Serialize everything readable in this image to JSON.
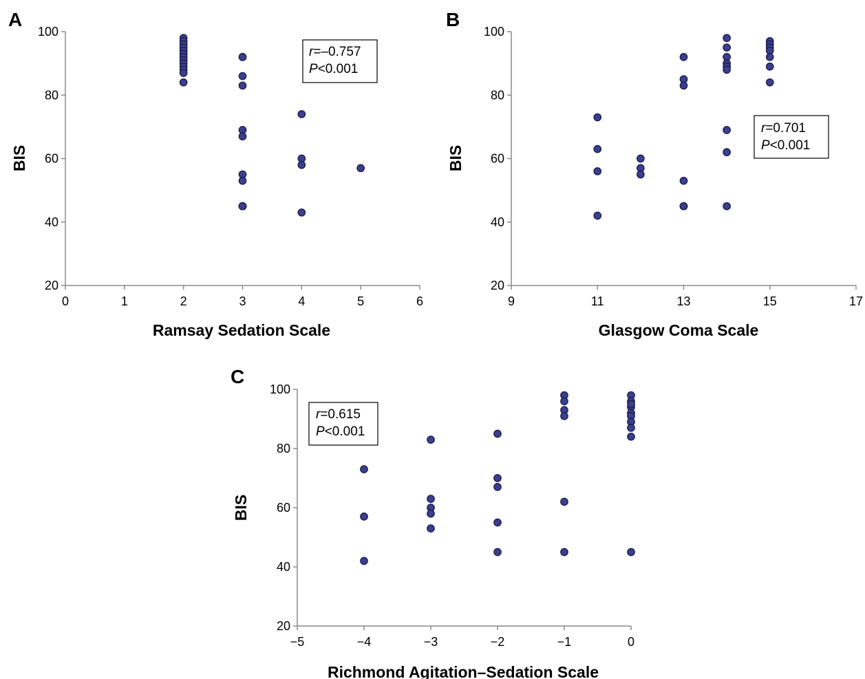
{
  "chart_data": [
    {
      "type": "scatter",
      "panel_label": "A",
      "xlabel": "Ramsay Sedation Scale",
      "ylabel": "BIS",
      "xlim": [
        0,
        6
      ],
      "ylim": [
        20,
        100
      ],
      "xticks": [
        "0",
        "1",
        "2",
        "3",
        "4",
        "5",
        "6"
      ],
      "yticks": [
        "20",
        "40",
        "60",
        "80",
        "100"
      ],
      "grid": false,
      "stats": {
        "r_symbol": "r",
        "r_value": "=–0.757",
        "p_symbol": "P",
        "p_value": "<0.001",
        "placement": "top-right"
      },
      "x": [
        2,
        2,
        2,
        2,
        2,
        2,
        2,
        2,
        2,
        2,
        2,
        2,
        2,
        2,
        3,
        3,
        3,
        3,
        3,
        3,
        3,
        3,
        3,
        3,
        3,
        3,
        3,
        4,
        4,
        4,
        4,
        5
      ],
      "y": [
        98,
        97,
        96,
        95,
        95,
        94,
        93,
        92,
        91,
        90,
        89,
        88,
        87,
        84,
        92,
        92,
        86,
        83,
        69,
        67,
        55,
        53,
        45,
        45,
        45,
        45,
        45,
        74,
        60,
        58,
        43,
        57
      ]
    },
    {
      "type": "scatter",
      "panel_label": "B",
      "xlabel": "Glasgow Coma Scale",
      "ylabel": "BIS",
      "xlim": [
        9,
        17
      ],
      "ylim": [
        20,
        100
      ],
      "xticks": [
        "9",
        "11",
        "13",
        "15",
        "17"
      ],
      "yticks": [
        "20",
        "40",
        "60",
        "80",
        "100"
      ],
      "grid": false,
      "stats": {
        "r_symbol": "r",
        "r_value": "=0.701",
        "p_symbol": "P",
        "p_value": "<0.001",
        "placement": "right"
      },
      "x": [
        11,
        11,
        11,
        11,
        12,
        12,
        12,
        13,
        13,
        13,
        13,
        13,
        13,
        14,
        14,
        14,
        14,
        14,
        14,
        14,
        14,
        14,
        15,
        15,
        15,
        15,
        15,
        15,
        15
      ],
      "y": [
        73,
        63,
        56,
        42,
        60,
        57,
        55,
        92,
        85,
        83,
        53,
        45,
        45,
        98,
        95,
        92,
        90,
        89,
        88,
        69,
        62,
        45,
        97,
        96,
        95,
        94,
        92,
        89,
        84
      ]
    },
    {
      "type": "scatter",
      "panel_label": "C",
      "xlabel": "Richmond Agitation–Sedation Scale",
      "ylabel": "BIS",
      "xlim": [
        -5,
        0
      ],
      "ylim": [
        20,
        100
      ],
      "xticks": [
        "−5",
        "−4",
        "−3",
        "−2",
        "−1",
        "0"
      ],
      "yticks": [
        "20",
        "40",
        "60",
        "80",
        "100"
      ],
      "grid": false,
      "stats": {
        "r_symbol": "r",
        "r_value": "=0.615",
        "p_symbol": "P",
        "p_value": "<0.001",
        "placement": "top-left"
      },
      "x": [
        -4,
        -4,
        -4,
        -3,
        -3,
        -3,
        -3,
        -3,
        -2,
        -2,
        -2,
        -2,
        -2,
        -1,
        -1,
        -1,
        -1,
        -1,
        -1,
        0,
        0,
        0,
        0,
        0,
        0,
        0,
        0,
        0,
        0
      ],
      "y": [
        73,
        57,
        42,
        83,
        63,
        60,
        58,
        53,
        85,
        70,
        67,
        55,
        45,
        98,
        96,
        93,
        91,
        62,
        45,
        98,
        96,
        94,
        92,
        91,
        89,
        87,
        84,
        45,
        95
      ]
    }
  ],
  "colors": {
    "marker_fill": "#3b3f8f",
    "marker_stroke": "#1a1c4a",
    "axis": "#8a8a8a"
  }
}
